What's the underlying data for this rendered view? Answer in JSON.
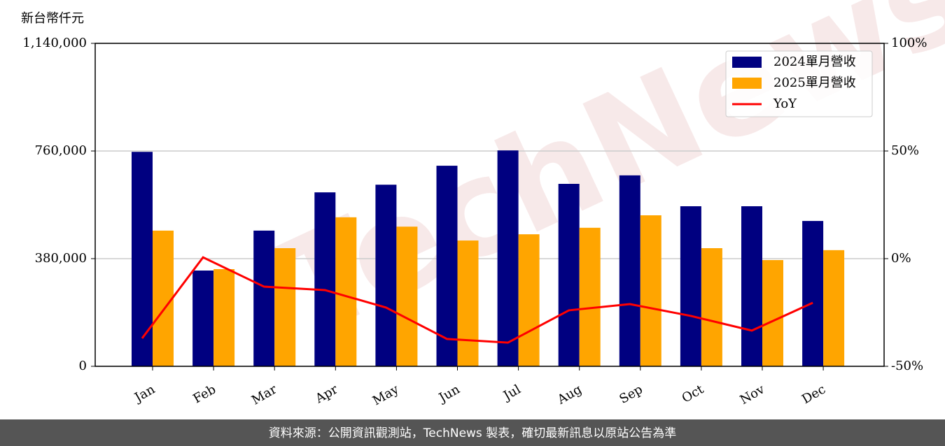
{
  "chart_data": {
    "type": "bar-line",
    "y_label": "新台幣仟元",
    "categories": [
      "Jan",
      "Feb",
      "Mar",
      "Apr",
      "May",
      "Jun",
      "Jul",
      "Aug",
      "Sep",
      "Oct",
      "Nov",
      "Dec"
    ],
    "series": [
      {
        "name": "2024單月營收",
        "color": "#000080",
        "type": "bar",
        "values": [
          757000,
          338000,
          479000,
          614000,
          641000,
          708000,
          762000,
          644000,
          674000,
          565000,
          565000,
          513000
        ]
      },
      {
        "name": "2025單月營收",
        "color": "#ffa500",
        "type": "bar",
        "values": [
          479000,
          343000,
          417000,
          526000,
          493000,
          444000,
          466000,
          489000,
          533000,
          417000,
          375000,
          410000
        ]
      },
      {
        "name": "YoY",
        "color": "#ff0000",
        "type": "line",
        "axis": "y2",
        "values": [
          -37.0,
          0.6,
          -13.0,
          -14.6,
          -22.7,
          -37.3,
          -39.0,
          -24.0,
          -21.1,
          -26.6,
          -33.4,
          -20.5
        ]
      }
    ],
    "ylim": [
      0,
      1140000
    ],
    "yticks": [
      0,
      {
        "value": 380000,
        "label": "380,000"
      },
      {
        "value": 760000,
        "label": "760,000"
      },
      {
        "value": 1140000,
        "label": "1,140,000"
      }
    ],
    "y2lim": [
      -50,
      100
    ],
    "y2ticks": [
      {
        "value": -50,
        "label": "-50%"
      },
      {
        "value": 0,
        "label": "0%"
      },
      {
        "value": 50,
        "label": "50%"
      },
      {
        "value": 100,
        "label": "100%"
      }
    ],
    "grid": true,
    "legend": "upper right",
    "watermark": "TechNews",
    "footer": "資料來源：公開資訊觀測站，TechNews 製表，確切最新訊息以原站公告為準"
  }
}
